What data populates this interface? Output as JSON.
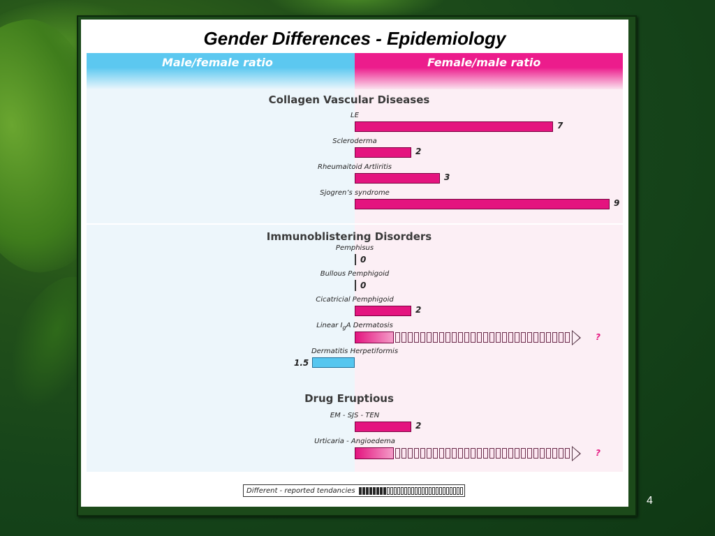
{
  "slide": {
    "title": "Gender Differences - Epidemiology",
    "page_number": "4"
  },
  "header": {
    "left_label": "Male/female ratio",
    "right_label": "Female/male ratio",
    "left_color": "#5cc8f0",
    "right_color": "#ec1c8c"
  },
  "chart_data": {
    "type": "bar",
    "title": "Gender Differences - Epidemiology",
    "sections": [
      {
        "title": "Collagen Vascular Diseases",
        "rows": [
          {
            "label": "LE",
            "side": "female",
            "value": 7,
            "value_label": "7"
          },
          {
            "label": "Scleroderma",
            "side": "female",
            "value": 2,
            "value_label": "2"
          },
          {
            "label": "Rheumaitoid Artliritis",
            "side": "female",
            "value": 3,
            "value_label": "3"
          },
          {
            "label": "Sjogren’s syndrome",
            "side": "female",
            "value": 9,
            "value_label": "9"
          }
        ]
      },
      {
        "title": "Immunoblistering Disorders",
        "rows": [
          {
            "label": "Pemphisus",
            "side": "female",
            "value": 0,
            "value_label": "0"
          },
          {
            "label": "Bullous Pemphigoid",
            "side": "female",
            "value": 0,
            "value_label": "0"
          },
          {
            "label": "Cicatricial Pemphigoid",
            "side": "female",
            "value": 2,
            "value_label": "2"
          },
          {
            "label": "Linear I",
            "label_sub": "g",
            "label_after": "A Dermatosis",
            "side": "female",
            "value": null,
            "value_label": "?",
            "style": "tendency"
          },
          {
            "label": "Dermatitis Herpetiformis",
            "side": "male",
            "value": 1.5,
            "value_label": "1.5"
          }
        ]
      },
      {
        "title": "Drug Eruptious",
        "rows": [
          {
            "label": "EM - SJS - TEN",
            "side": "female",
            "value": 2,
            "value_label": "2"
          },
          {
            "label": "Urticaria - Angioedema",
            "side": "female",
            "value": null,
            "value_label": "?",
            "style": "tendency"
          }
        ]
      }
    ],
    "legend": {
      "label": "Different - reported tendancies"
    },
    "colors": {
      "female": "#e4147f",
      "male": "#55c6ef"
    }
  }
}
